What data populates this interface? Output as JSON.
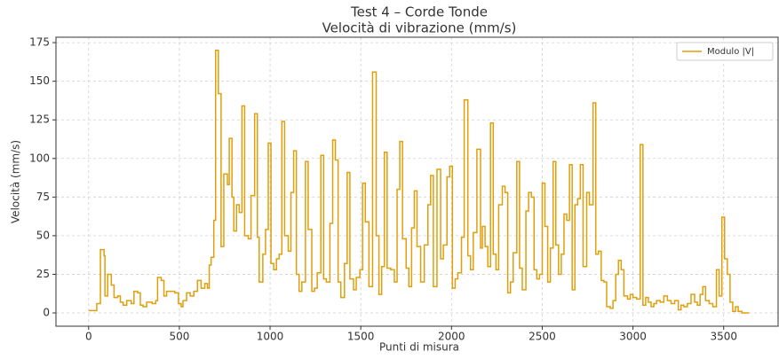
{
  "chart_data": {
    "type": "line",
    "step": "post",
    "title": "Test 4 – Corde Tonde",
    "subtitle": "Velocità di vibrazione (mm/s)",
    "xlabel": "Punti di misura",
    "ylabel": "Velocità (mm/s)",
    "xlim": [
      -180,
      3800
    ],
    "ylim": [
      -8.6,
      178.5
    ],
    "xticks": [
      0,
      500,
      1000,
      1500,
      2000,
      2500,
      3000,
      3500
    ],
    "yticks": [
      0,
      25,
      50,
      75,
      100,
      125,
      150,
      175
    ],
    "grid": true,
    "legend": "upper right",
    "x": [
      0,
      45,
      65,
      85,
      90,
      105,
      125,
      140,
      160,
      175,
      190,
      210,
      235,
      250,
      270,
      285,
      300,
      320,
      350,
      370,
      380,
      400,
      415,
      430,
      450,
      475,
      495,
      510,
      520,
      540,
      560,
      580,
      600,
      620,
      640,
      655,
      665,
      675,
      690,
      700,
      715,
      730,
      745,
      765,
      775,
      790,
      800,
      815,
      830,
      845,
      860,
      880,
      895,
      915,
      930,
      940,
      960,
      975,
      990,
      1005,
      1020,
      1035,
      1050,
      1065,
      1080,
      1100,
      1115,
      1130,
      1145,
      1160,
      1175,
      1195,
      1210,
      1230,
      1245,
      1260,
      1280,
      1295,
      1310,
      1330,
      1345,
      1360,
      1375,
      1390,
      1410,
      1425,
      1440,
      1460,
      1475,
      1495,
      1510,
      1525,
      1545,
      1565,
      1585,
      1600,
      1615,
      1630,
      1645,
      1665,
      1685,
      1700,
      1715,
      1730,
      1750,
      1765,
      1780,
      1795,
      1810,
      1830,
      1850,
      1870,
      1885,
      1900,
      1920,
      1940,
      1955,
      1975,
      1990,
      2005,
      2020,
      2035,
      2055,
      2070,
      2090,
      2105,
      2120,
      2140,
      2160,
      2170,
      2185,
      2200,
      2215,
      2230,
      2245,
      2260,
      2280,
      2295,
      2310,
      2325,
      2340,
      2360,
      2375,
      2390,
      2410,
      2425,
      2440,
      2455,
      2470,
      2485,
      2500,
      2515,
      2530,
      2545,
      2560,
      2575,
      2590,
      2605,
      2620,
      2635,
      2650,
      2665,
      2680,
      2695,
      2710,
      2725,
      2745,
      2760,
      2780,
      2795,
      2810,
      2825,
      2840,
      2855,
      2875,
      2890,
      2905,
      2920,
      2935,
      2950,
      2970,
      2985,
      3000,
      3020,
      3040,
      3055,
      3070,
      3085,
      3100,
      3115,
      3130,
      3150,
      3170,
      3190,
      3210,
      3230,
      3250,
      3265,
      3280,
      3300,
      3320,
      3340,
      3355,
      3370,
      3385,
      3400,
      3420,
      3440,
      3460,
      3475,
      3490,
      3505,
      3520,
      3535,
      3550,
      3565,
      3580,
      3600,
      3640
    ],
    "series": [
      {
        "name": "Modulo |V|",
        "color": "#e09f0c",
        "values": [
          1.5,
          6,
          41,
          37,
          11,
          25,
          18,
          10,
          11,
          7,
          5,
          8,
          6,
          14,
          13,
          5,
          4,
          7,
          6,
          8,
          23,
          21,
          11,
          14,
          14,
          13,
          6,
          4,
          8,
          13,
          11,
          14,
          21,
          16,
          19,
          16,
          31,
          36,
          60,
          170,
          142,
          43,
          90,
          83,
          113,
          75,
          53,
          70,
          65,
          134,
          50,
          48,
          76,
          129,
          49,
          20,
          38,
          54,
          110,
          32,
          28,
          35,
          38,
          124,
          50,
          40,
          78,
          105,
          25,
          14,
          20,
          98,
          54,
          14,
          16,
          26,
          102,
          22,
          20,
          58,
          112,
          99,
          20,
          10,
          32,
          91,
          22,
          15,
          23,
          28,
          84,
          59,
          17,
          156,
          50,
          12,
          30,
          104,
          29,
          28,
          20,
          80,
          111,
          48,
          29,
          17,
          55,
          79,
          43,
          20,
          44,
          70,
          89,
          17,
          93,
          35,
          44,
          88,
          95,
          16,
          22,
          26,
          49,
          138,
          37,
          28,
          52,
          106,
          42,
          56,
          43,
          30,
          123,
          38,
          28,
          70,
          82,
          78,
          13,
          20,
          39,
          98,
          29,
          15,
          66,
          78,
          75,
          28,
          22,
          25,
          84,
          56,
          20,
          42,
          98,
          44,
          25,
          38,
          64,
          60,
          96,
          15,
          70,
          74,
          96,
          30,
          78,
          70,
          136,
          38,
          40,
          21,
          20,
          4,
          3,
          8,
          25,
          34,
          28,
          11,
          9,
          12,
          10,
          9,
          109,
          5,
          10,
          7,
          4,
          6,
          8,
          7,
          11,
          8,
          6,
          8,
          2,
          5,
          4,
          6,
          12,
          7,
          5,
          12,
          17,
          8,
          6,
          4,
          28,
          11,
          62,
          35,
          25,
          7,
          1,
          4,
          1,
          0,
          0
        ]
      }
    ]
  }
}
